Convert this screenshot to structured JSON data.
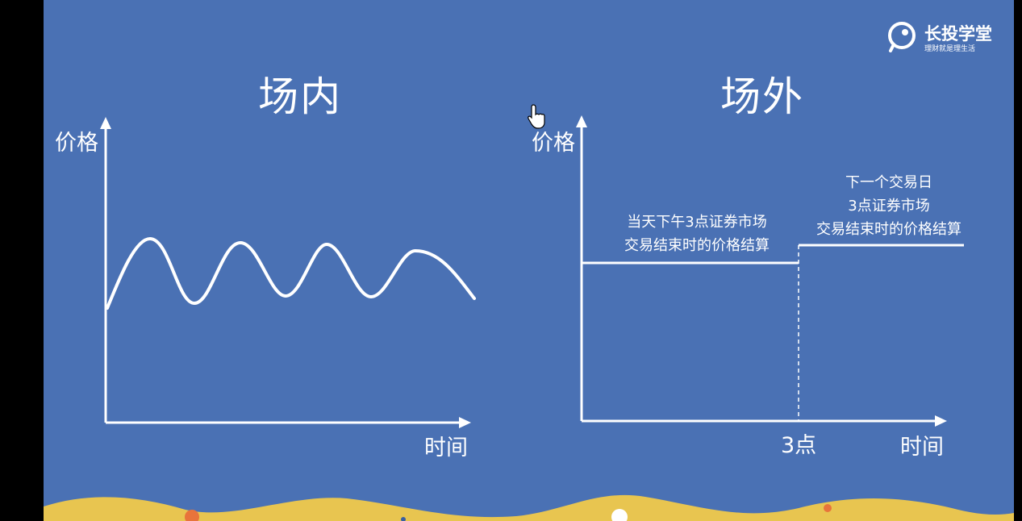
{
  "brand": {
    "name": "长投学堂",
    "slogan": "理财就是理生活"
  },
  "colors": {
    "background": "#4a71b4",
    "foreground": "#ffffff",
    "wave_yellow": "#e8c550",
    "accent_orange": "#e8743b"
  },
  "left_diagram": {
    "title": "场内",
    "y_axis_label": "价格",
    "x_axis_label": "时间"
  },
  "right_diagram": {
    "title": "场外",
    "y_axis_label": "价格",
    "x_axis_label": "时间",
    "x_marker_label": "3点",
    "annotation_today": [
      "当天下午3点证券市场",
      "交易结束时的价格结算"
    ],
    "annotation_next_day": [
      "下一个交易日",
      "3点证券市场",
      "交易结束时的价格结算"
    ]
  }
}
